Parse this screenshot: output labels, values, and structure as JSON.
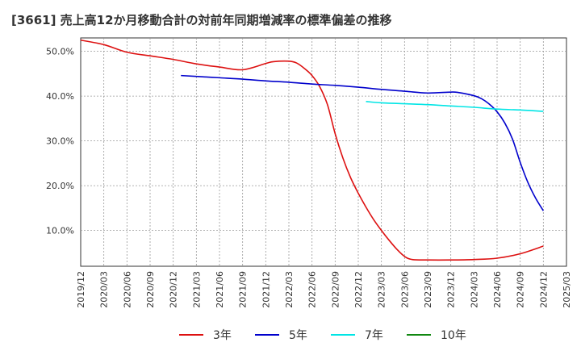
{
  "chart_data": {
    "type": "line",
    "title": "[3661]  売上高12か月移動合計の対前年同期増減率の標準偏差の推移",
    "xlabel": "",
    "ylabel": "",
    "ylim": [
      0.02,
      0.53
    ],
    "grid": true,
    "legend_position": "bottom",
    "y_ticks": [
      "10.0%",
      "20.0%",
      "30.0%",
      "40.0%",
      "50.0%"
    ],
    "y_tick_values": [
      0.1,
      0.2,
      0.3,
      0.4,
      0.5
    ],
    "x_ticks": [
      "2019/12",
      "2020/03",
      "2020/06",
      "2020/09",
      "2020/12",
      "2021/03",
      "2021/06",
      "2021/09",
      "2021/12",
      "2022/03",
      "2022/06",
      "2022/09",
      "2022/12",
      "2023/03",
      "2023/06",
      "2023/09",
      "2023/12",
      "2024/03",
      "2024/06",
      "2024/09",
      "2024/12",
      "2025/03"
    ],
    "series": [
      {
        "name": "3年",
        "color": "#dd1111",
        "x": [
          "2019/12",
          "2020/03",
          "2020/06",
          "2020/09",
          "2020/12",
          "2021/03",
          "2021/06",
          "2021/09",
          "2021/12",
          "2022/01",
          "2022/03",
          "2022/04",
          "2022/05",
          "2022/06",
          "2022/07",
          "2022/08",
          "2022/09",
          "2022/10",
          "2022/11",
          "2022/12",
          "2023/01",
          "2023/02",
          "2023/03",
          "2023/04",
          "2023/05",
          "2023/06",
          "2023/07",
          "2023/09",
          "2023/12",
          "2024/03",
          "2024/06",
          "2024/09",
          "2024/12"
        ],
        "values": [
          0.525,
          0.515,
          0.498,
          0.49,
          0.482,
          0.472,
          0.465,
          0.459,
          0.473,
          0.477,
          0.478,
          0.474,
          0.462,
          0.446,
          0.421,
          0.381,
          0.316,
          0.262,
          0.218,
          0.183,
          0.152,
          0.124,
          0.1,
          0.078,
          0.058,
          0.042,
          0.035,
          0.034,
          0.034,
          0.035,
          0.038,
          0.048,
          0.065
        ]
      },
      {
        "name": "5年",
        "color": "#0000cc",
        "x": [
          "2021/01",
          "2021/03",
          "2021/06",
          "2021/09",
          "2021/12",
          "2022/03",
          "2022/06",
          "2022/09",
          "2022/12",
          "2023/03",
          "2023/06",
          "2023/09",
          "2023/12",
          "2024/01",
          "2024/03",
          "2024/04",
          "2024/05",
          "2024/06",
          "2024/07",
          "2024/08",
          "2024/09",
          "2024/10",
          "2024/11",
          "2024/12"
        ],
        "values": [
          0.446,
          0.444,
          0.441,
          0.438,
          0.434,
          0.431,
          0.427,
          0.424,
          0.42,
          0.415,
          0.411,
          0.407,
          0.409,
          0.408,
          0.401,
          0.394,
          0.382,
          0.365,
          0.34,
          0.304,
          0.252,
          0.207,
          0.172,
          0.144
        ]
      },
      {
        "name": "7年",
        "color": "#00e5e5",
        "x": [
          "2023/01",
          "2023/03",
          "2023/06",
          "2023/09",
          "2023/12",
          "2024/03",
          "2024/06",
          "2024/09",
          "2024/12"
        ],
        "values": [
          0.388,
          0.385,
          0.383,
          0.381,
          0.378,
          0.375,
          0.371,
          0.369,
          0.366
        ]
      },
      {
        "name": "10年",
        "color": "#118811",
        "x": [],
        "values": []
      }
    ]
  }
}
